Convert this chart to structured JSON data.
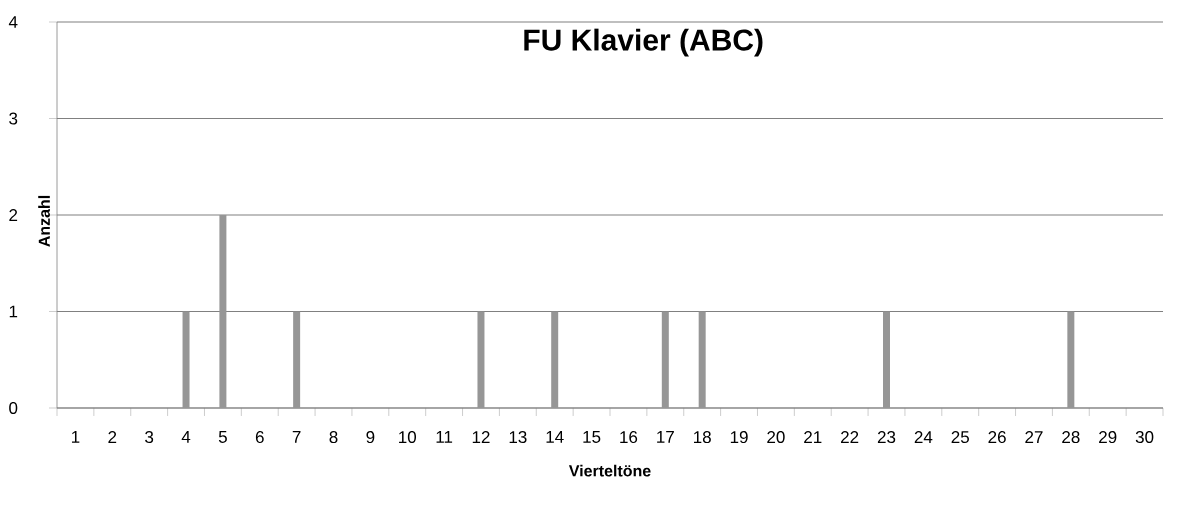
{
  "chart_data": {
    "type": "bar",
    "title": "FU Klavier (ABC)",
    "xlabel": "Vierteltöne",
    "ylabel": "Anzahl",
    "categories": [
      "1",
      "2",
      "3",
      "4",
      "5",
      "6",
      "7",
      "8",
      "9",
      "10",
      "11",
      "12",
      "13",
      "14",
      "15",
      "16",
      "17",
      "18",
      "19",
      "20",
      "21",
      "22",
      "23",
      "24",
      "25",
      "26",
      "27",
      "28",
      "29",
      "30"
    ],
    "values": [
      0,
      0,
      0,
      1,
      2,
      0,
      1,
      0,
      0,
      0,
      0,
      1,
      0,
      1,
      0,
      0,
      1,
      1,
      0,
      0,
      0,
      0,
      1,
      0,
      0,
      0,
      0,
      1,
      0,
      0
    ],
    "color": "#969696",
    "ylim": [
      0,
      4
    ],
    "yticks": [
      0,
      1,
      2,
      3,
      4
    ],
    "grid": "y"
  }
}
